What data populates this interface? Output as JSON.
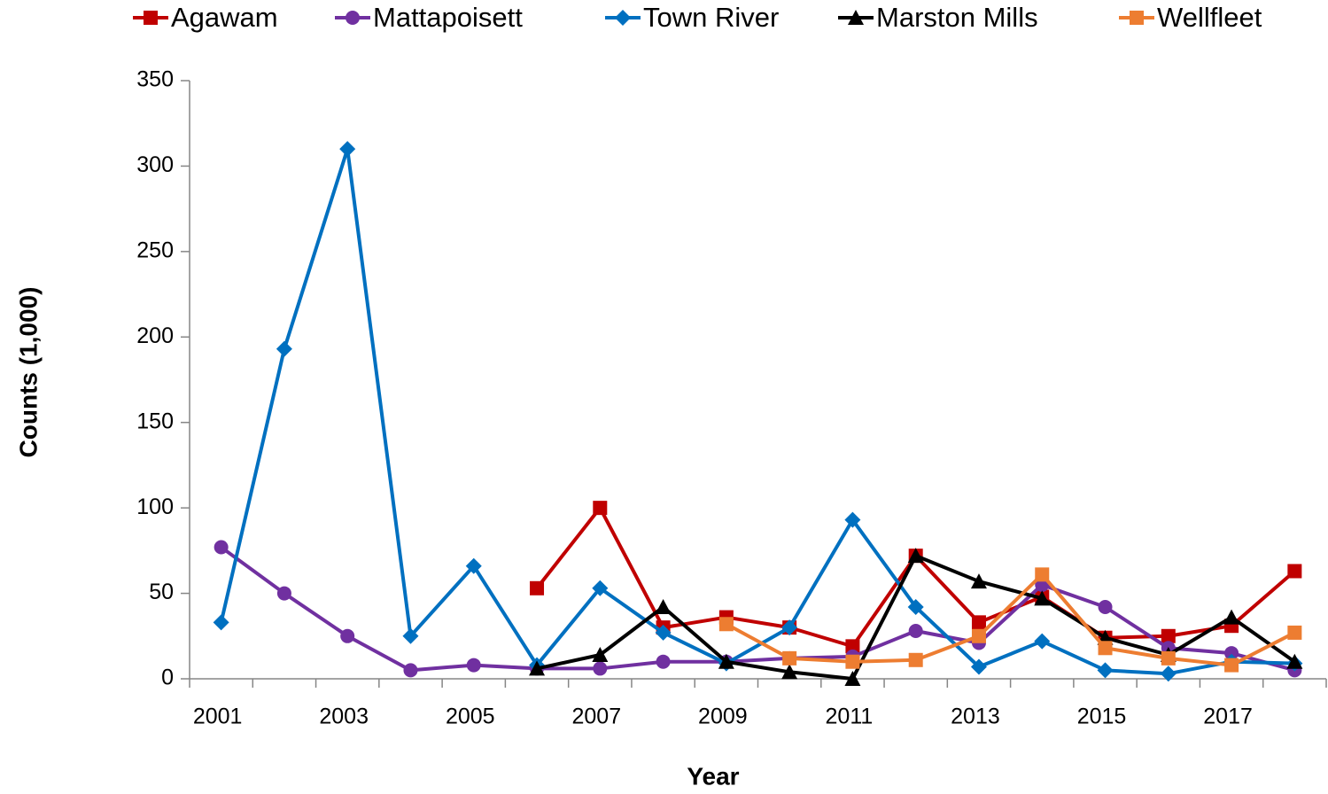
{
  "chart_data": {
    "type": "line",
    "x_label": "Year",
    "y_label": "Counts (1,000)",
    "categories": [
      "2001",
      null,
      "2003",
      null,
      "2005",
      null,
      "2007",
      null,
      "2009",
      null,
      "2011",
      null,
      "2013",
      null,
      "2015",
      null,
      "2017",
      null
    ],
    "ylim": [
      0,
      350
    ],
    "yticks": [
      0,
      50,
      100,
      150,
      200,
      250,
      300,
      350
    ],
    "legend": "top",
    "series": [
      {
        "name": "Agawam",
        "color": "#c00000",
        "marker": "square",
        "values": [
          null,
          null,
          null,
          null,
          null,
          53,
          100,
          30,
          36,
          30,
          19,
          72,
          33,
          48,
          24,
          25,
          31,
          63
        ]
      },
      {
        "name": "Mattapoisett",
        "color": "#7030a0",
        "marker": "circle",
        "values": [
          77,
          50,
          25,
          5,
          8,
          6,
          6,
          10,
          10,
          12,
          13,
          28,
          21,
          55,
          42,
          18,
          15,
          5
        ]
      },
      {
        "name": "Town River",
        "color": "#0070c0",
        "marker": "diamond",
        "values": [
          33,
          193,
          310,
          25,
          66,
          8,
          53,
          27,
          9,
          30,
          93,
          42,
          7,
          22,
          5,
          3,
          10,
          9
        ]
      },
      {
        "name": "Marston Mills",
        "color": "#000000",
        "marker": "triangle",
        "values": [
          null,
          null,
          null,
          null,
          null,
          6,
          14,
          42,
          10,
          4,
          0,
          72,
          57,
          47,
          24,
          14,
          36,
          10
        ]
      },
      {
        "name": "Wellfleet",
        "color": "#ed7d31",
        "marker": "square",
        "values": [
          null,
          null,
          null,
          null,
          null,
          null,
          null,
          null,
          32,
          12,
          10,
          11,
          25,
          61,
          18,
          12,
          8,
          27
        ]
      }
    ]
  }
}
